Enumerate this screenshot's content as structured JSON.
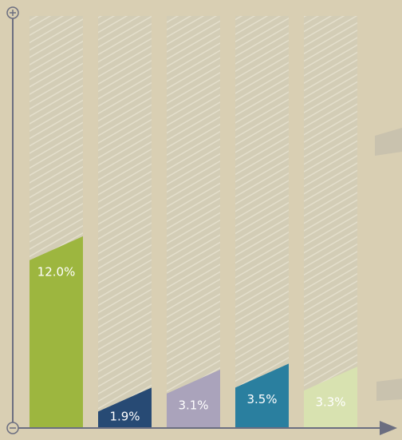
{
  "chart_data": {
    "type": "bar",
    "categories": [
      null,
      null,
      null,
      null,
      null
    ],
    "values": [
      12.0,
      1.9,
      3.1,
      3.5,
      3.3
    ],
    "value_labels": [
      "12.0%",
      "1.9%",
      "3.1%",
      "3.5%",
      "3.3%"
    ],
    "colors": [
      "#9db63f",
      "#274a74",
      "#aaa3bb",
      "#2a7f9f",
      "#d8e2b0"
    ],
    "ylim": [
      0,
      27.5
    ]
  }
}
